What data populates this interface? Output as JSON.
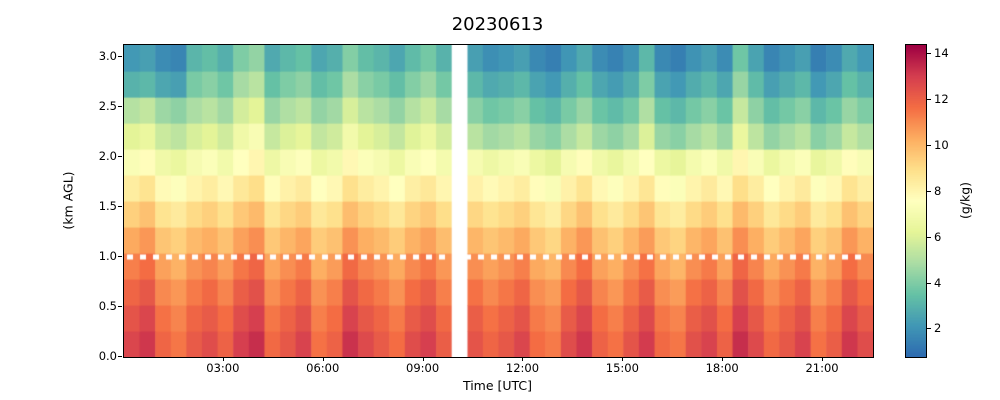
{
  "title": "20230613",
  "chart_data": {
    "type": "heatmap",
    "title": "20230613",
    "xlabel": "Time [UTC]",
    "ylabel": "(km AGL)",
    "colorbar_label": "(g/kg)",
    "x_tick_labels": [
      "03:00",
      "06:00",
      "09:00",
      "12:00",
      "15:00",
      "18:00",
      "21:00"
    ],
    "x_tick_hours": [
      3,
      6,
      9,
      12,
      15,
      18,
      21
    ],
    "y_tick_labels": [
      "0.0",
      "0.5",
      "1.0",
      "1.5",
      "2.0",
      "2.5",
      "3.0"
    ],
    "y_tick_values": [
      0.0,
      0.5,
      1.0,
      1.5,
      2.0,
      2.5,
      3.0
    ],
    "colorbar_ticks": [
      2,
      4,
      6,
      8,
      10,
      12,
      14
    ],
    "time_range_hours": [
      0,
      22.5
    ],
    "height_range_km": [
      0,
      3.12
    ],
    "vmin": 0.8,
    "vmax": 14.4,
    "dotted_line_km": 1.0,
    "dotted_line_color": "#ffffff",
    "missing_data_column": 21,
    "grid": false,
    "rows_order": "bottom-to-top",
    "n_cols": 48,
    "n_rows": 12,
    "row_centers_km": [
      0.13,
      0.39,
      0.65,
      0.91,
      1.17,
      1.43,
      1.69,
      1.95,
      2.21,
      2.47,
      2.73,
      2.99
    ],
    "colormap_stops": [
      [
        0.0,
        "#2d6bb0"
      ],
      [
        0.1,
        "#4198b5"
      ],
      [
        0.2,
        "#66c2a5"
      ],
      [
        0.3,
        "#abdda4"
      ],
      [
        0.4,
        "#e6f598"
      ],
      [
        0.5,
        "#ffffbf"
      ],
      [
        0.6,
        "#fee08b"
      ],
      [
        0.7,
        "#fdae61"
      ],
      [
        0.8,
        "#f46d43"
      ],
      [
        0.9,
        "#d53e4f"
      ],
      [
        1.0,
        "#9e0142"
      ]
    ],
    "values": [
      [
        12.8,
        13.2,
        11.9,
        11.5,
        12.2,
        12.6,
        12.0,
        13.0,
        13.4,
        11.8,
        12.3,
        12.9,
        11.6,
        12.0,
        13.3,
        12.7,
        12.2,
        11.7,
        12.6,
        13.0,
        12.1,
        null,
        12.4,
        11.9,
        12.3,
        12.8,
        11.7,
        11.4,
        12.6,
        13.2,
        12.0,
        11.6,
        12.4,
        13.1,
        11.8,
        11.5,
        12.5,
        12.9,
        12.0,
        13.4,
        12.7,
        11.8,
        12.3,
        12.9,
        11.6,
        12.1,
        13.2,
        12.6
      ],
      [
        12.4,
        12.8,
        11.6,
        11.2,
        11.9,
        12.2,
        11.7,
        12.6,
        13.0,
        11.5,
        12.0,
        12.5,
        11.3,
        11.7,
        12.9,
        12.3,
        11.9,
        11.4,
        12.2,
        12.6,
        11.8,
        null,
        12.1,
        11.6,
        12.0,
        12.4,
        11.4,
        11.1,
        12.2,
        12.8,
        11.7,
        11.3,
        12.0,
        12.7,
        11.5,
        11.2,
        12.1,
        12.5,
        11.7,
        13.0,
        12.3,
        11.5,
        12.0,
        12.5,
        11.3,
        11.8,
        12.8,
        12.2
      ],
      [
        11.9,
        12.3,
        11.1,
        10.8,
        11.4,
        11.8,
        11.2,
        12.1,
        12.5,
        11.0,
        11.5,
        12.0,
        10.9,
        11.3,
        12.4,
        11.8,
        11.4,
        10.9,
        11.7,
        12.1,
        11.3,
        null,
        11.6,
        11.1,
        11.5,
        11.9,
        11.0,
        10.7,
        11.7,
        12.3,
        11.2,
        10.8,
        11.5,
        12.2,
        11.0,
        10.7,
        11.6,
        12.0,
        11.2,
        12.5,
        11.8,
        11.0,
        11.5,
        12.0,
        10.8,
        11.3,
        12.3,
        11.7
      ],
      [
        11.3,
        11.7,
        10.6,
        10.2,
        10.9,
        11.2,
        10.7,
        11.5,
        11.9,
        10.5,
        11.0,
        11.4,
        10.3,
        10.7,
        11.8,
        11.2,
        10.9,
        10.4,
        11.1,
        11.5,
        10.8,
        null,
        11.0,
        10.6,
        10.9,
        11.3,
        10.4,
        10.1,
        11.1,
        11.7,
        10.6,
        10.3,
        11.0,
        11.6,
        10.5,
        10.1,
        11.0,
        11.4,
        10.6,
        11.9,
        11.2,
        10.4,
        10.9,
        11.4,
        10.2,
        10.7,
        11.7,
        11.1
      ],
      [
        10.4,
        10.8,
        9.7,
        9.4,
        10.0,
        10.3,
        9.8,
        10.6,
        11.0,
        9.6,
        10.1,
        10.5,
        9.5,
        9.8,
        10.9,
        10.3,
        10.0,
        9.5,
        10.2,
        10.6,
        9.9,
        null,
        10.1,
        9.7,
        10.0,
        10.4,
        9.6,
        9.2,
        10.2,
        10.8,
        9.8,
        9.4,
        10.1,
        10.7,
        9.6,
        9.3,
        10.1,
        10.5,
        9.8,
        11.0,
        10.3,
        9.5,
        10.0,
        10.5,
        9.4,
        9.8,
        10.8,
        10.2
      ],
      [
        9.4,
        9.8,
        8.8,
        8.5,
        9.1,
        9.4,
        8.9,
        9.6,
        10.0,
        8.7,
        9.2,
        9.5,
        8.6,
        8.9,
        9.9,
        9.4,
        9.1,
        8.6,
        9.3,
        9.6,
        9.0,
        null,
        9.2,
        8.8,
        9.1,
        9.4,
        8.7,
        8.3,
        9.2,
        9.8,
        8.9,
        8.5,
        9.1,
        9.7,
        8.7,
        8.4,
        9.1,
        9.5,
        8.9,
        10.0,
        9.4,
        8.6,
        9.1,
        9.5,
        8.5,
        8.9,
        9.8,
        9.3
      ],
      [
        8.4,
        8.8,
        7.8,
        7.5,
        8.1,
        8.4,
        7.9,
        8.6,
        9.0,
        7.7,
        8.2,
        8.5,
        7.6,
        7.9,
        8.9,
        8.4,
        8.1,
        7.6,
        8.3,
        8.6,
        8.0,
        null,
        8.2,
        7.8,
        8.1,
        8.4,
        7.7,
        7.3,
        8.2,
        8.8,
        7.9,
        7.5,
        8.1,
        8.7,
        7.7,
        7.4,
        8.1,
        8.5,
        7.9,
        9.0,
        8.4,
        7.6,
        8.1,
        8.5,
        7.5,
        7.9,
        8.8,
        8.3
      ],
      [
        7.3,
        7.7,
        6.8,
        6.5,
        7.1,
        7.4,
        6.9,
        7.6,
        8.0,
        6.7,
        7.2,
        7.5,
        6.6,
        6.9,
        7.9,
        7.4,
        7.1,
        6.6,
        7.3,
        7.6,
        7.0,
        null,
        7.1,
        6.7,
        7.0,
        7.3,
        6.6,
        6.2,
        7.1,
        7.7,
        6.8,
        6.4,
        7.0,
        7.6,
        6.6,
        6.3,
        7.0,
        7.4,
        6.8,
        8.0,
        7.3,
        6.5,
        7.0,
        7.4,
        6.4,
        6.8,
        7.7,
        7.2
      ],
      [
        6.2,
        6.5,
        5.6,
        5.3,
        5.9,
        6.2,
        5.7,
        6.8,
        7.2,
        5.5,
        6.0,
        6.3,
        5.4,
        5.7,
        6.9,
        6.2,
        5.9,
        5.4,
        6.1,
        6.6,
        5.8,
        null,
        5.2,
        4.7,
        4.9,
        5.2,
        4.5,
        4.2,
        4.9,
        5.5,
        4.6,
        4.3,
        4.8,
        6.0,
        4.5,
        4.2,
        4.8,
        5.2,
        4.6,
        6.5,
        5.3,
        4.4,
        4.8,
        5.2,
        4.2,
        4.6,
        5.5,
        5.0
      ],
      [
        5.1,
        5.4,
        4.6,
        4.3,
        4.9,
        5.2,
        4.7,
        5.8,
        6.2,
        4.5,
        5.0,
        5.3,
        4.4,
        4.7,
        5.9,
        5.2,
        4.9,
        4.4,
        5.1,
        5.6,
        4.8,
        null,
        4.2,
        3.7,
        3.9,
        4.2,
        3.5,
        3.2,
        3.9,
        4.5,
        3.6,
        3.3,
        3.8,
        5.0,
        3.5,
        3.2,
        3.8,
        4.2,
        3.6,
        5.5,
        4.3,
        3.4,
        3.8,
        4.2,
        3.2,
        3.6,
        4.5,
        4.0
      ],
      [
        3.0,
        3.2,
        2.6,
        2.4,
        3.9,
        4.2,
        3.7,
        4.8,
        5.2,
        3.5,
        4.0,
        4.3,
        3.4,
        3.7,
        4.9,
        4.2,
        3.9,
        3.4,
        4.1,
        4.6,
        3.8,
        null,
        3.2,
        2.7,
        2.9,
        3.2,
        2.5,
        2.2,
        2.9,
        3.5,
        2.6,
        2.3,
        2.8,
        4.0,
        2.5,
        2.2,
        2.8,
        3.2,
        2.6,
        4.5,
        3.3,
        2.4,
        2.8,
        3.2,
        2.2,
        2.6,
        3.5,
        3.0
      ],
      [
        2.2,
        2.4,
        1.8,
        1.6,
        3.1,
        3.4,
        2.9,
        4.0,
        4.4,
        2.7,
        3.2,
        3.5,
        2.6,
        2.9,
        4.1,
        3.4,
        3.1,
        2.6,
        3.3,
        3.8,
        3.0,
        null,
        2.4,
        1.9,
        2.1,
        2.4,
        1.7,
        1.4,
        2.1,
        2.7,
        1.8,
        1.5,
        2.0,
        3.2,
        1.7,
        1.4,
        2.0,
        2.4,
        1.8,
        3.7,
        2.5,
        1.6,
        2.0,
        2.4,
        1.4,
        1.8,
        2.7,
        2.2
      ]
    ]
  }
}
